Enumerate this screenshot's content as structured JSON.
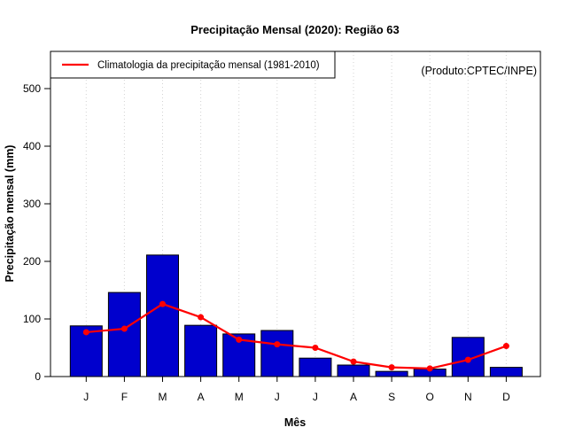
{
  "chart_data": {
    "type": "bar",
    "title": "Precipitação Mensal (2020): Região 63",
    "xlabel": "Mês",
    "ylabel": "Precipitação mensal (mm)",
    "categories": [
      "J",
      "F",
      "M",
      "A",
      "M",
      "J",
      "J",
      "A",
      "S",
      "O",
      "N",
      "D"
    ],
    "series": [
      {
        "name": "Precipitação Mensal (2020)",
        "type": "bar",
        "color": "#0000CD",
        "border_color": "#000000",
        "values": [
          88,
          146,
          211,
          89,
          74,
          80,
          32,
          20,
          9,
          13,
          68,
          16
        ]
      },
      {
        "name": "Climatologia da precipitação mensal (1981-2010)",
        "type": "line",
        "color": "#FF0000",
        "marker": "circle",
        "values": [
          77,
          83,
          126,
          103,
          64,
          56,
          50,
          26,
          16,
          14,
          29,
          53
        ]
      }
    ],
    "ylim": [
      0,
      500
    ],
    "yticks": [
      0,
      100,
      200,
      300,
      400,
      500
    ],
    "grid": "vertical-dotted",
    "grid_color": "#D3D3D3",
    "legend_position": "top-left",
    "annotation": "(Produto:CPTEC/INPE)",
    "annotation_color": "#7F7F7F"
  }
}
